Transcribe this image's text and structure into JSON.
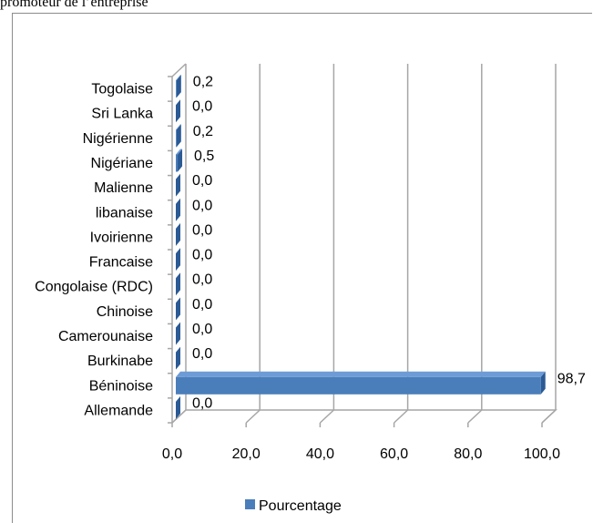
{
  "caption": "promoteur de l’entreprise",
  "chart_data": {
    "type": "bar",
    "orientation": "horizontal",
    "style": "3d",
    "categories": [
      "Togolaise",
      "Sri Lanka",
      "Nigérienne",
      "Nigériane",
      "Malienne",
      "libanaise",
      "Ivoirienne",
      "Francaise",
      "Congolaise (RDC)",
      "Chinoise",
      "Camerounaise",
      "Burkinabe",
      "Béninoise",
      "Allemande"
    ],
    "series": [
      {
        "name": "Pourcentage",
        "values": [
          0.2,
          0.0,
          0.2,
          0.5,
          0.0,
          0.0,
          0.0,
          0.0,
          0.0,
          0.0,
          0.0,
          0.0,
          98.7,
          0.0
        ],
        "labels": [
          "0,2",
          "0,0",
          "0,2",
          "0,5",
          "0,0",
          "0,0",
          "0,0",
          "0,0",
          "0,0",
          "0,0",
          "0,0",
          "0,0",
          "98,7",
          "0,0"
        ]
      }
    ],
    "xlim": [
      0,
      100
    ],
    "x_ticks": [
      0,
      20,
      40,
      60,
      80,
      100
    ],
    "x_tick_labels": [
      "0,0",
      "20,0",
      "40,0",
      "60,0",
      "80,0",
      "100,0"
    ],
    "grid": true,
    "legend_position": "bottom",
    "colors": {
      "bar_front": "#4a7ebb",
      "bar_top": "#6d9bd6",
      "bar_side": "#2b5a94",
      "gridline": "#a6a6a6",
      "frame": "#8c8c8c"
    }
  }
}
